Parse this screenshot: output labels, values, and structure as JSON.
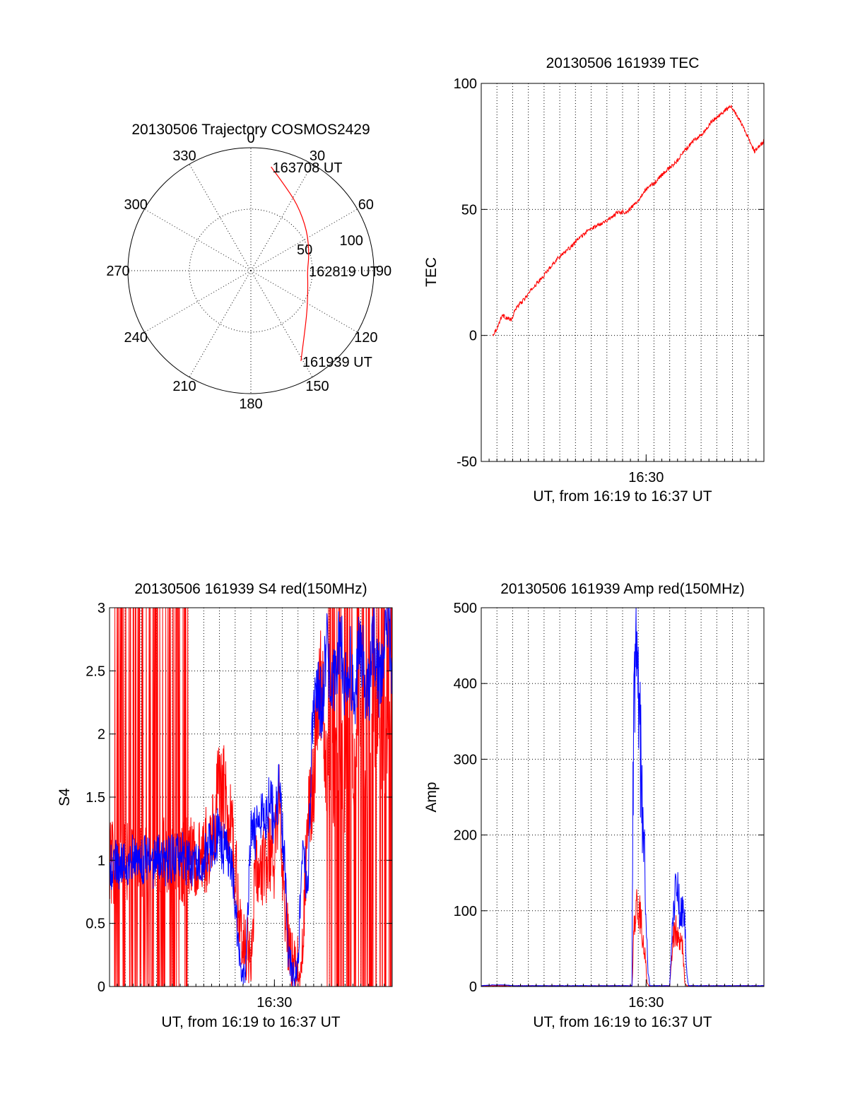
{
  "chart_data": [
    {
      "type": "polar",
      "title": "20130506 Trajectory COSMOS2429",
      "azimuth_labels": [
        "0",
        "30",
        "60",
        "90",
        "120",
        "150",
        "180",
        "210",
        "240",
        "270",
        "300",
        "330"
      ],
      "azimuth_values": [
        0,
        30,
        60,
        90,
        120,
        150,
        180,
        210,
        240,
        270,
        300,
        330
      ],
      "radial_labels": [
        "50",
        "100"
      ],
      "radial_values": [
        50,
        100
      ],
      "rmax": 100,
      "track": [
        {
          "az": 11,
          "r": 86
        },
        {
          "az": 20,
          "r": 76
        },
        {
          "az": 35,
          "r": 66
        },
        {
          "az": 55,
          "r": 56
        },
        {
          "az": 75,
          "r": 49
        },
        {
          "az": 90,
          "r": 46
        },
        {
          "az": 105,
          "r": 48
        },
        {
          "az": 125,
          "r": 56
        },
        {
          "az": 142,
          "r": 70
        },
        {
          "az": 151,
          "r": 84
        }
      ],
      "annotations": [
        {
          "text": "163708 UT",
          "az": 11,
          "r": 86
        },
        {
          "text": "162819 UT",
          "az": 90,
          "r": 46
        },
        {
          "text": "161939 UT",
          "az": 151,
          "r": 84
        }
      ],
      "track_color": "#ff0000"
    },
    {
      "type": "line",
      "title": "20130506 161939 TEC",
      "xlabel": "UT, from 16:19 to 16:37 UT",
      "ylabel": "TEC",
      "xlim": [
        16.325,
        16.625
      ],
      "ylim": [
        -50,
        100
      ],
      "yticks": [
        -50,
        0,
        50,
        100
      ],
      "xtick_labels": [
        "16:30"
      ],
      "xtick_values": [
        16.5
      ],
      "vgrid_spacing_min": 1,
      "grid": true,
      "series": [
        {
          "name": "TEC",
          "color": "#ff0000",
          "x": [
            16.337,
            16.342,
            16.347,
            16.352,
            16.357,
            16.362,
            16.37,
            16.38,
            16.39,
            16.4,
            16.41,
            16.42,
            16.43,
            16.44,
            16.45,
            16.46,
            16.47,
            16.48,
            16.49,
            16.5,
            16.51,
            16.52,
            16.53,
            16.54,
            16.55,
            16.56,
            16.57,
            16.58,
            16.59,
            16.6,
            16.61,
            16.615,
            16.62,
            16.625
          ],
          "y": [
            0,
            3,
            8,
            7,
            6,
            11,
            14,
            19,
            23,
            28,
            32,
            35,
            39,
            42,
            44,
            46,
            49,
            49,
            53,
            58,
            61,
            65,
            68,
            73,
            77,
            80,
            85,
            88,
            91,
            85,
            77,
            73,
            75,
            77
          ]
        }
      ]
    },
    {
      "type": "line",
      "title": "20130506 161939 S4 red(150MHz)",
      "xlabel": "UT, from 16:19 to 16:37 UT",
      "ylabel": "S4",
      "xlim": [
        16.325,
        16.625
      ],
      "ylim": [
        0,
        3
      ],
      "yticks": [
        0,
        0.5,
        1,
        1.5,
        2,
        2.5,
        3
      ],
      "ytick_labels": [
        "0",
        "0.5",
        "1",
        "1.5",
        "2",
        "2.5",
        "3"
      ],
      "xtick_labels": [
        "16:30"
      ],
      "xtick_values": [
        16.5
      ],
      "grid": true,
      "series": [
        {
          "name": "red 150MHz",
          "color": "#ff0000",
          "x": [
            16.325,
            16.33,
            16.335,
            16.34,
            16.345,
            16.35,
            16.355,
            16.36,
            16.365,
            16.37,
            16.375,
            16.38,
            16.385,
            16.39,
            16.395,
            16.4,
            16.405,
            16.41,
            16.415,
            16.42,
            16.425,
            16.43,
            16.435,
            16.44,
            16.445,
            16.45,
            16.455,
            16.46,
            16.465,
            16.47,
            16.475,
            16.48,
            16.485,
            16.49,
            16.495,
            16.5,
            16.505,
            16.51,
            16.515,
            16.52,
            16.525,
            16.53,
            16.535,
            16.54,
            16.545,
            16.55,
            16.555,
            16.56,
            16.565,
            16.57,
            16.575,
            16.58,
            16.585,
            16.59,
            16.595,
            16.6,
            16.605,
            16.61,
            16.615,
            16.62,
            16.625
          ],
          "y": [
            1.0,
            0.95,
            1.02,
            0.98,
            1.05,
            0.95,
            1.0,
            1.03,
            0.97,
            1.0,
            1.05,
            0.96,
            1.02,
            0.98,
            1.04,
            1.0,
            0.97,
            1.03,
            1.0,
            0.98,
            1.05,
            1.1,
            1.3,
            1.5,
            1.6,
            1.4,
            1.2,
            0.8,
            0.4,
            0.3,
            0.3,
            0.9,
            1.0,
            0.9,
            1.1,
            1.0,
            1.4,
            0.8,
            0.3,
            0.15,
            0.15,
            0.3,
            1.3,
            1.5,
            2.0,
            2.5,
            1.8,
            1.5,
            1.7,
            1.9,
            1.6,
            2.2,
            1.8,
            2.5,
            1.9,
            1.7,
            2.0,
            2.3,
            1.8,
            2.1,
            1.9
          ]
        },
        {
          "name": "blue",
          "color": "#0000ff",
          "x": [
            16.325,
            16.33,
            16.335,
            16.34,
            16.345,
            16.35,
            16.355,
            16.36,
            16.365,
            16.37,
            16.375,
            16.38,
            16.385,
            16.39,
            16.395,
            16.4,
            16.405,
            16.41,
            16.415,
            16.42,
            16.425,
            16.43,
            16.435,
            16.44,
            16.445,
            16.45,
            16.455,
            16.46,
            16.465,
            16.47,
            16.475,
            16.48,
            16.485,
            16.49,
            16.495,
            16.5,
            16.505,
            16.51,
            16.515,
            16.52,
            16.525,
            16.53,
            16.535,
            16.54,
            16.545,
            16.55,
            16.555,
            16.56,
            16.565,
            16.57,
            16.575,
            16.58,
            16.585,
            16.59,
            16.595,
            16.6,
            16.605,
            16.61,
            16.615,
            16.62,
            16.625
          ],
          "y": [
            0.9,
            1.0,
            0.95,
            1.02,
            0.97,
            1.05,
            0.98,
            1.0,
            1.03,
            0.96,
            1.0,
            1.04,
            0.97,
            1.02,
            0.99,
            1.05,
            1.0,
            0.96,
            1.02,
            1.05,
            1.0,
            1.1,
            1.15,
            1.2,
            1.1,
            1.05,
            0.9,
            0.5,
            0.12,
            0.15,
            1.3,
            1.2,
            1.4,
            1.25,
            1.5,
            1.3,
            1.6,
            1.1,
            0.2,
            0.12,
            0.15,
            1.2,
            0.7,
            2.0,
            2.4,
            2.2,
            2.7,
            2.3,
            2.5,
            2.8,
            2.4,
            2.6,
            2.2,
            2.7,
            2.5,
            2.3,
            2.8,
            2.4,
            2.6,
            2.9,
            2.5
          ]
        }
      ]
    },
    {
      "type": "line",
      "title": "20130506 161939 Amp red(150MHz)",
      "xlabel": "UT, from 16:19 to 16:37 UT",
      "ylabel": "Amp",
      "xlim": [
        16.325,
        16.625
      ],
      "ylim": [
        0,
        500
      ],
      "yticks": [
        0,
        100,
        200,
        300,
        400,
        500
      ],
      "xtick_labels": [
        "16:30"
      ],
      "xtick_values": [
        16.5
      ],
      "grid": true,
      "series": [
        {
          "name": "red 150MHz",
          "color": "#ff0000",
          "x": [
            16.325,
            16.485,
            16.487,
            16.489,
            16.491,
            16.493,
            16.495,
            16.497,
            16.499,
            16.501,
            16.503,
            16.525,
            16.527,
            16.529,
            16.531,
            16.533,
            16.535,
            16.537,
            16.539,
            16.541,
            16.543,
            16.625
          ],
          "y": [
            1,
            1,
            70,
            110,
            95,
            100,
            80,
            60,
            40,
            5,
            1,
            1,
            40,
            65,
            75,
            70,
            60,
            55,
            50,
            5,
            1,
            1
          ]
        },
        {
          "name": "blue",
          "color": "#0000ff",
          "x": [
            16.325,
            16.337,
            16.35,
            16.36,
            16.485,
            16.486,
            16.488,
            16.49,
            16.492,
            16.494,
            16.496,
            16.498,
            16.5,
            16.502,
            16.504,
            16.525,
            16.527,
            16.529,
            16.531,
            16.533,
            16.535,
            16.537,
            16.539,
            16.541,
            16.543,
            16.545,
            16.625
          ],
          "y": [
            1,
            2,
            2,
            1,
            1,
            300,
            435,
            380,
            360,
            300,
            220,
            180,
            90,
            20,
            1,
            1,
            50,
            100,
            120,
            135,
            110,
            95,
            100,
            80,
            20,
            1,
            1
          ]
        }
      ]
    }
  ]
}
